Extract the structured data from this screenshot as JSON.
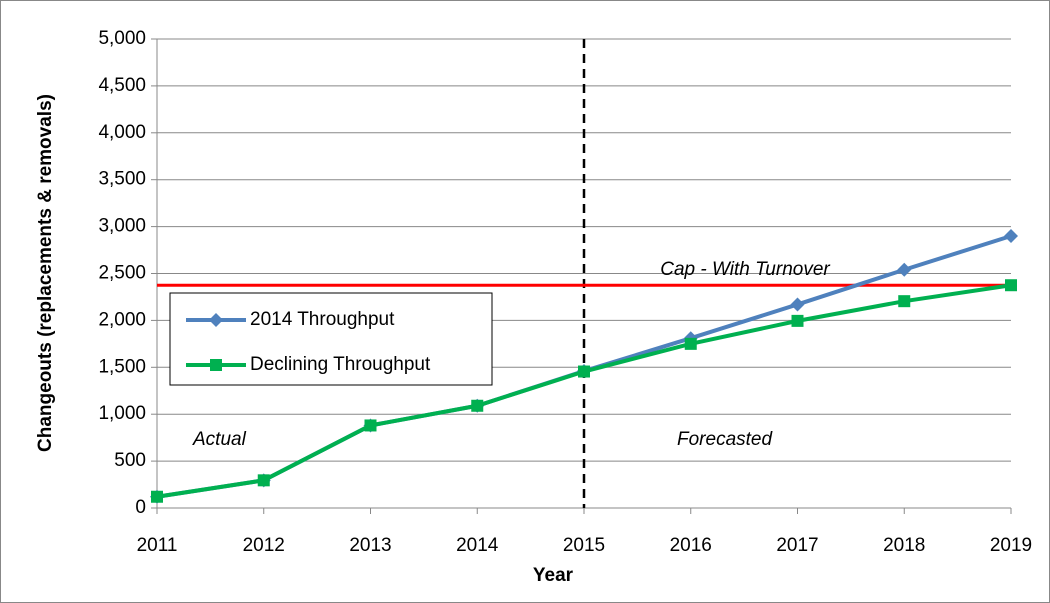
{
  "chart_data": {
    "type": "line",
    "y_label": "Changeouts (replacements & removals)",
    "x_label": "Year",
    "x": [
      2011,
      2012,
      2013,
      2014,
      2015,
      2016,
      2017,
      2018,
      2019
    ],
    "series": [
      {
        "name": "2014 Throughput",
        "color": "#4f81bd",
        "marker": "diamond",
        "values": [
          120,
          295,
          880,
          1090,
          1460,
          1810,
          2170,
          2540,
          2900
        ]
      },
      {
        "name": "Declining Throughput",
        "color": "#00b050",
        "marker": "square",
        "values": [
          120,
          295,
          880,
          1090,
          1455,
          1750,
          1995,
          2205,
          2375
        ]
      }
    ],
    "reference_line": {
      "value": 2375,
      "label": "Cap - With Turnover",
      "color": "#ff0000"
    },
    "divider_x": 2015,
    "annotations": [
      "Actual",
      "Forecasted"
    ],
    "xlim": [
      2011,
      2019
    ],
    "xticks": [
      2011,
      2012,
      2013,
      2014,
      2015,
      2016,
      2017,
      2018,
      2019
    ],
    "ylim": [
      0,
      5000
    ],
    "yticks": [
      0,
      500,
      {
        "value": 1000,
        "label": "1,000"
      },
      {
        "value": 1500,
        "label": "1,500"
      },
      {
        "value": 2000,
        "label": "2,000"
      },
      {
        "value": 2500,
        "label": "2,500"
      },
      {
        "value": 3000,
        "label": "3,000"
      },
      {
        "value": 3500,
        "label": "3,500"
      },
      {
        "value": 4000,
        "label": "4,000"
      },
      {
        "value": 4500,
        "label": "4,500"
      },
      {
        "value": 5000,
        "label": "5,000"
      }
    ],
    "grid": true,
    "legend": "left"
  }
}
